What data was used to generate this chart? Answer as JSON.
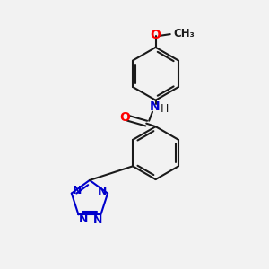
{
  "background_color": "#f2f2f2",
  "bond_color": "#1a1a1a",
  "bond_width": 1.5,
  "atom_colors": {
    "O": "#ff0000",
    "N": "#0000cc",
    "C": "#1a1a1a",
    "H": "#1a1a1a"
  },
  "font_size": 8.5,
  "figsize": [
    3.0,
    3.0
  ],
  "dpi": 100
}
